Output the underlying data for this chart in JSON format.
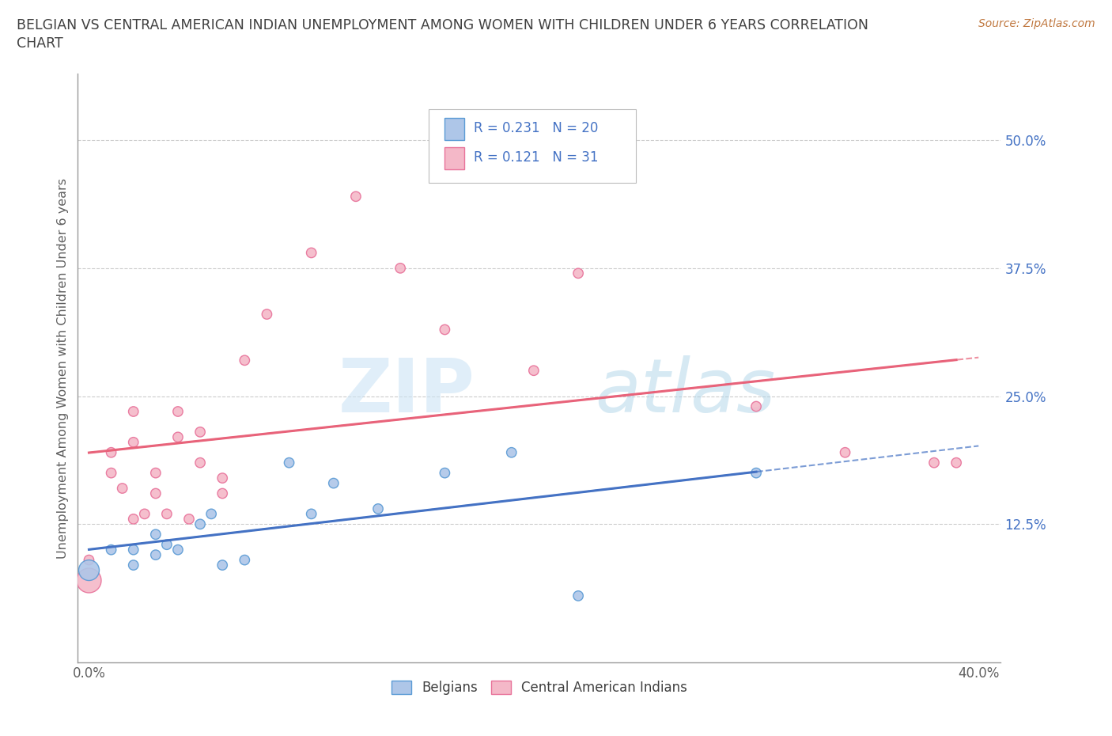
{
  "title_line1": "BELGIAN VS CENTRAL AMERICAN INDIAN UNEMPLOYMENT AMONG WOMEN WITH CHILDREN UNDER 6 YEARS CORRELATION",
  "title_line2": "CHART",
  "source": "Source: ZipAtlas.com",
  "ylabel": "Unemployment Among Women with Children Under 6 years",
  "xlim": [
    -0.005,
    0.41
  ],
  "ylim": [
    -0.01,
    0.565
  ],
  "xticks": [
    0.0,
    0.1,
    0.2,
    0.3,
    0.4
  ],
  "xtick_labels": [
    "0.0%",
    "",
    "",
    "",
    "40.0%"
  ],
  "yticks": [
    0.0,
    0.125,
    0.25,
    0.375,
    0.5
  ],
  "ytick_labels": [
    "",
    "12.5%",
    "25.0%",
    "37.5%",
    "50.0%"
  ],
  "belgian_color": "#aec6e8",
  "belgian_edge_color": "#5b9bd5",
  "central_color": "#f4b8c8",
  "central_edge_color": "#e8729a",
  "line_belgian_color": "#4472c4",
  "line_central_color": "#e8637a",
  "stat_label_color": "#4472c4",
  "R_belgian": 0.231,
  "N_belgian": 20,
  "R_central": 0.121,
  "N_central": 31,
  "belgian_x": [
    0.0,
    0.01,
    0.02,
    0.02,
    0.03,
    0.03,
    0.04,
    0.05,
    0.06,
    0.07,
    0.09,
    0.1,
    0.11,
    0.13,
    0.16,
    0.19,
    0.22,
    0.3,
    0.035,
    0.055
  ],
  "belgian_y": [
    0.08,
    0.1,
    0.1,
    0.085,
    0.115,
    0.095,
    0.1,
    0.125,
    0.085,
    0.09,
    0.185,
    0.135,
    0.165,
    0.14,
    0.175,
    0.195,
    0.055,
    0.175,
    0.105,
    0.135
  ],
  "belgian_size": [
    350,
    80,
    80,
    80,
    80,
    80,
    80,
    80,
    80,
    80,
    80,
    80,
    80,
    80,
    80,
    80,
    80,
    80,
    80,
    80
  ],
  "central_x": [
    0.0,
    0.0,
    0.01,
    0.01,
    0.02,
    0.02,
    0.02,
    0.03,
    0.03,
    0.04,
    0.04,
    0.05,
    0.05,
    0.06,
    0.06,
    0.07,
    0.08,
    0.1,
    0.12,
    0.14,
    0.16,
    0.2,
    0.22,
    0.3,
    0.34,
    0.38,
    0.39,
    0.015,
    0.025,
    0.035,
    0.045
  ],
  "central_y": [
    0.07,
    0.09,
    0.175,
    0.195,
    0.235,
    0.205,
    0.13,
    0.175,
    0.155,
    0.21,
    0.235,
    0.215,
    0.185,
    0.17,
    0.155,
    0.285,
    0.33,
    0.39,
    0.445,
    0.375,
    0.315,
    0.275,
    0.37,
    0.24,
    0.195,
    0.185,
    0.185,
    0.16,
    0.135,
    0.135,
    0.13
  ],
  "central_size": [
    500,
    80,
    80,
    80,
    80,
    80,
    80,
    80,
    80,
    80,
    80,
    80,
    80,
    80,
    80,
    80,
    80,
    80,
    80,
    80,
    80,
    80,
    80,
    80,
    80,
    80,
    80,
    80,
    80,
    80,
    80
  ],
  "watermark_zip": "ZIP",
  "watermark_atlas": "atlas",
  "grid_color": "#cccccc",
  "background_color": "#ffffff",
  "title_color": "#404040",
  "axis_label_color": "#606060",
  "legend_border_color": "#bbbbbb",
  "bottom_legend_label_color": "#404040"
}
